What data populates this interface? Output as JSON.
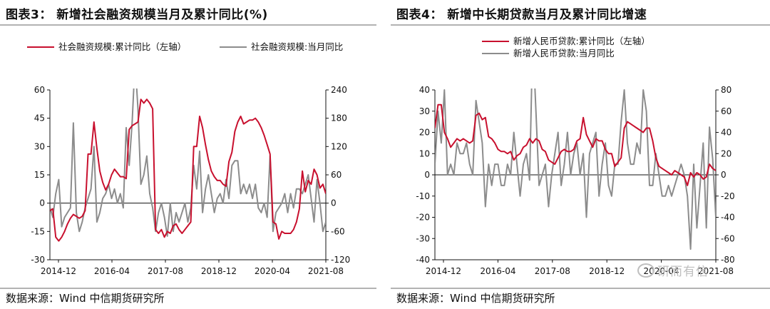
{
  "left": {
    "title": "图表3：  新增社会融资规模当月及累计同比(%)",
    "source": "数据来源：Wind 中信期货研究所",
    "chart_data": {
      "type": "line",
      "dual_axis": true,
      "legend_placement": "top",
      "ylim_left": [
        -30,
        60
      ],
      "yticks_left": [
        -30,
        -15,
        0,
        15,
        30,
        45,
        60
      ],
      "ylim_right": [
        -120,
        240
      ],
      "yticks_right": [
        -120,
        -60,
        0,
        60,
        120,
        180,
        240
      ],
      "xtick_labels": [
        "2014-12",
        "2016-04",
        "2017-08",
        "2018-12",
        "2020-04",
        "2021-08"
      ],
      "series": [
        {
          "name": "社会融资规模:累计同比（左轴）",
          "axis": "left",
          "color": "#c8102e",
          "values": [
            -4,
            -3,
            -18,
            -20,
            -18,
            -15,
            -11,
            -8,
            -6,
            -7,
            -8,
            -7,
            -4,
            26,
            26,
            43,
            29,
            17,
            11,
            7,
            10,
            15,
            18,
            16,
            14,
            14,
            13,
            39,
            41,
            42,
            43,
            55,
            53,
            55,
            53,
            50,
            -14,
            -16,
            -14,
            -18,
            -15,
            -16,
            -12,
            -11,
            -14,
            -16,
            -14,
            -12,
            -10,
            30,
            30,
            46,
            40,
            31,
            23,
            17,
            14,
            12,
            12,
            10,
            9,
            22,
            27,
            38,
            43,
            46,
            42,
            43,
            44,
            44,
            45,
            43,
            40,
            36,
            31,
            26,
            -10,
            -11,
            -19,
            -15,
            -16,
            -16,
            -16,
            -14,
            -10,
            -3,
            17,
            6,
            12,
            10,
            18,
            15,
            8,
            10,
            5
          ]
        },
        {
          "name": "社会融资规模:当月同比",
          "axis": "right",
          "color": "#8c8c8c",
          "values": [
            -8,
            -30,
            20,
            50,
            -50,
            -30,
            -20,
            -10,
            170,
            -20,
            -60,
            -40,
            -10,
            10,
            30,
            120,
            -40,
            -20,
            10,
            20,
            40,
            10,
            30,
            0,
            20,
            -10,
            160,
            80,
            170,
            300,
            200,
            40,
            60,
            100,
            20,
            -10,
            -60,
            -20,
            0,
            -30,
            -70,
            0,
            -60,
            -20,
            -40,
            -20,
            0,
            -40,
            -10,
            80,
            30,
            110,
            -20,
            30,
            60,
            20,
            -20,
            10,
            20,
            0,
            50,
            10,
            80,
            90,
            90,
            20,
            40,
            20,
            40,
            10,
            40,
            -10,
            -20,
            0,
            -30,
            100,
            -60,
            -20,
            -10,
            0,
            20,
            -20,
            20,
            -10,
            30,
            30,
            20,
            40,
            60,
            10,
            -40,
            50,
            0,
            -60,
            -40
          ]
        }
      ]
    }
  },
  "right": {
    "title": "图表4：  新增中长期贷款当月及累计同比增速",
    "source": "数据来源：Wind 中信期货研究所",
    "watermark": "研而有信",
    "chart_data": {
      "type": "line",
      "dual_axis": true,
      "legend_placement": "top",
      "ylim_left": [
        -40,
        40
      ],
      "yticks_left": [
        -40,
        -30,
        -20,
        -10,
        0,
        10,
        20,
        30,
        40
      ],
      "ylim_right": [
        -80,
        80
      ],
      "yticks_right": [
        -80,
        -60,
        -40,
        -20,
        0,
        20,
        40,
        60,
        80
      ],
      "xtick_labels": [
        "2014-12",
        "2016-04",
        "2017-08",
        "2018-12",
        "2020-04",
        "2021-08"
      ],
      "series": [
        {
          "name": "新增人民币贷款:累计同比（左轴）",
          "axis": "left",
          "color": "#c8102e",
          "values": [
            22,
            33,
            33,
            20,
            17,
            13,
            15,
            17,
            16,
            17,
            16,
            15,
            16,
            28,
            29,
            26,
            27,
            18,
            17,
            15,
            12,
            11,
            11,
            10,
            11,
            7,
            9,
            10,
            13,
            14,
            17,
            15,
            17,
            16,
            12,
            11,
            7,
            6,
            5,
            8,
            11,
            12,
            11,
            11,
            12,
            16,
            17,
            27,
            19,
            16,
            13,
            17,
            16,
            16,
            12,
            10,
            10,
            4,
            6,
            8,
            22,
            25,
            24,
            23,
            22,
            21,
            20,
            22,
            22,
            16,
            8,
            4,
            3,
            2,
            1,
            0,
            2,
            1,
            0,
            -1,
            -5,
            1,
            -1,
            1,
            0,
            -2,
            -1,
            5,
            3,
            2
          ]
        },
        {
          "name": "新增人民币贷款:当月同比",
          "axis": "right",
          "color": "#8c8c8c",
          "values": [
            10,
            60,
            30,
            80,
            0,
            10,
            0,
            30,
            20,
            20,
            30,
            10,
            0,
            70,
            50,
            30,
            -30,
            10,
            -10,
            10,
            10,
            -10,
            -10,
            10,
            0,
            40,
            10,
            -20,
            10,
            20,
            -5,
            130,
            60,
            -10,
            0,
            10,
            -30,
            0,
            20,
            40,
            -10,
            10,
            40,
            0,
            20,
            30,
            0,
            20,
            -40,
            20,
            30,
            40,
            -20,
            10,
            30,
            -10,
            -20,
            10,
            10,
            50,
            80,
            30,
            10,
            10,
            30,
            20,
            80,
            60,
            -10,
            -10,
            20,
            0,
            -20,
            -20,
            -10,
            -20,
            -10,
            0,
            10,
            0,
            -20,
            -70,
            10,
            -50,
            -10,
            30,
            -50,
            45,
            15,
            -40
          ]
        }
      ]
    }
  }
}
